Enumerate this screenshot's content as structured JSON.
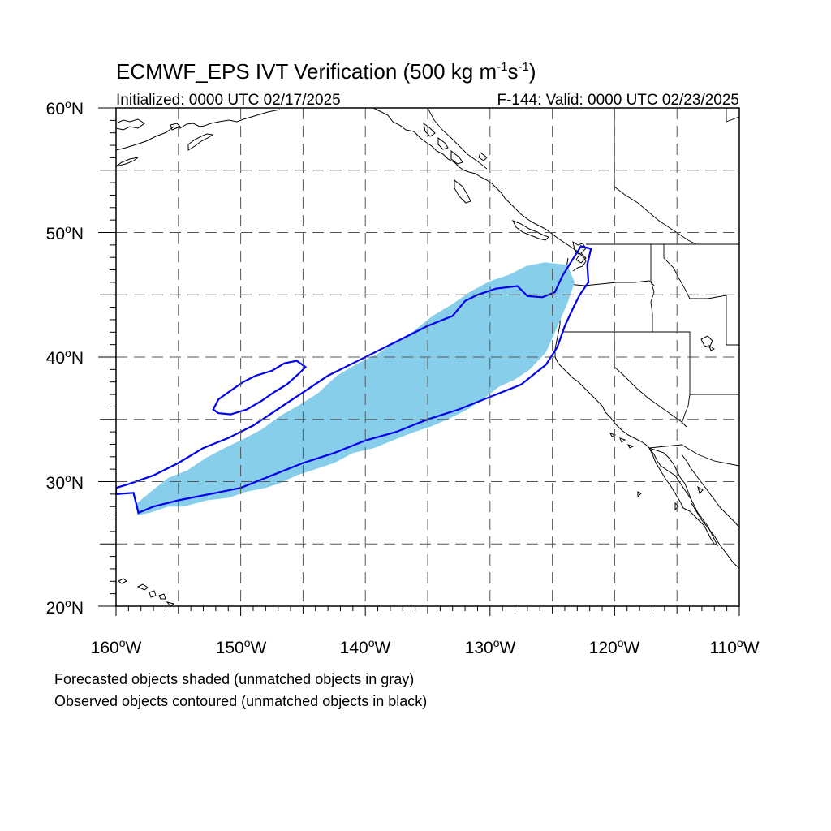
{
  "title": {
    "prefix": "ECMWF_EPS IVT Verification (500 kg m",
    "exp1": "-1",
    "middle": "s",
    "exp2": "-1",
    "suffix": ")"
  },
  "initialized": "Initialized: 0000 UTC 02/17/2025",
  "valid": "F-144: Valid: 0000 UTC 02/23/2025",
  "axes": {
    "lat_labels": [
      "20",
      "30",
      "40",
      "50",
      "60"
    ],
    "lat_suffix": "N",
    "lon_labels": [
      "160",
      "150",
      "140",
      "130",
      "120",
      "110"
    ],
    "lon_suffix": "W",
    "degree": "o"
  },
  "notes": [
    "Forecasted objects shaded (unmatched objects in gray)",
    "Observed objects contoured (unmatched objects in black)"
  ],
  "map": {
    "lon_range": [
      -160,
      -110
    ],
    "lat_range": [
      20,
      60
    ],
    "projection": "equirectangular",
    "grid_spacing_deg": 5,
    "grid": true
  },
  "colors": {
    "forecast_fill": "#87ceeb",
    "observed_contour": "#0000ee",
    "gridline": "#555555",
    "coastline": "#000000"
  },
  "chart_data": {
    "type": "map",
    "title": "ECMWF_EPS IVT Verification (500 kg m-1s-1)",
    "subtitles": [
      "Initialized: 0000 UTC 02/17/2025",
      "F-144: Valid: 0000 UTC 02/23/2025"
    ],
    "xlim": [
      -160,
      -110
    ],
    "ylim": [
      20,
      60
    ],
    "forecast_object_lonlat": [
      [
        -158.3,
        27.3
      ],
      [
        -157.3,
        27.5
      ],
      [
        -155.8,
        28.0
      ],
      [
        -154.6,
        28.0
      ],
      [
        -152.7,
        28.5
      ],
      [
        -151.0,
        28.7
      ],
      [
        -149.5,
        29.2
      ],
      [
        -148.0,
        29.5
      ],
      [
        -146.8,
        29.9
      ],
      [
        -145.5,
        30.5
      ],
      [
        -144.0,
        31.0
      ],
      [
        -142.5,
        31.5
      ],
      [
        -141.0,
        32.3
      ],
      [
        -139.3,
        32.7
      ],
      [
        -137.8,
        33.3
      ],
      [
        -136.3,
        33.9
      ],
      [
        -134.8,
        34.4
      ],
      [
        -133.4,
        35.0
      ],
      [
        -131.8,
        35.8
      ],
      [
        -130.6,
        36.6
      ],
      [
        -129.3,
        37.6
      ],
      [
        -128.0,
        38.2
      ],
      [
        -126.8,
        39.0
      ],
      [
        -125.5,
        40.4
      ],
      [
        -124.7,
        42.2
      ],
      [
        -123.8,
        44.3
      ],
      [
        -123.2,
        46.0
      ],
      [
        -123.8,
        47.4
      ],
      [
        -125.6,
        47.6
      ],
      [
        -127.1,
        47.3
      ],
      [
        -128.5,
        46.6
      ],
      [
        -130.0,
        46.1
      ],
      [
        -131.5,
        45.3
      ],
      [
        -133.1,
        44.2
      ],
      [
        -134.6,
        43.3
      ],
      [
        -136.1,
        42.1
      ],
      [
        -137.6,
        41.2
      ],
      [
        -139.1,
        40.2
      ],
      [
        -140.6,
        39.5
      ],
      [
        -142.3,
        38.5
      ],
      [
        -143.8,
        37.1
      ],
      [
        -145.2,
        36.2
      ],
      [
        -146.8,
        35.3
      ],
      [
        -148.3,
        34.2
      ],
      [
        -149.8,
        33.4
      ],
      [
        -151.3,
        32.7
      ],
      [
        -152.8,
        31.9
      ],
      [
        -154.3,
        30.9
      ],
      [
        -155.8,
        30.3
      ],
      [
        -157.2,
        29.2
      ],
      [
        -158.4,
        28.2
      ]
    ],
    "observed_objects_lonlat": [
      [
        [
          -160.0,
          29.0
        ],
        [
          -158.6,
          29.1
        ],
        [
          -158.2,
          27.5
        ],
        [
          -157.0,
          28.0
        ],
        [
          -155.0,
          28.5
        ],
        [
          -152.5,
          29.0
        ],
        [
          -150.0,
          29.5
        ],
        [
          -147.5,
          30.5
        ],
        [
          -145.0,
          31.5
        ],
        [
          -142.5,
          32.3
        ],
        [
          -140.0,
          33.3
        ],
        [
          -137.5,
          34.0
        ],
        [
          -135.0,
          35.0
        ],
        [
          -132.5,
          35.8
        ],
        [
          -130.0,
          36.8
        ],
        [
          -127.5,
          37.8
        ],
        [
          -125.5,
          39.4
        ],
        [
          -124.6,
          40.8
        ],
        [
          -124.0,
          42.5
        ],
        [
          -123.3,
          44.0
        ],
        [
          -122.8,
          45.0
        ],
        [
          -122.1,
          46.0
        ],
        [
          -122.2,
          47.4
        ],
        [
          -121.9,
          48.7
        ],
        [
          -122.7,
          48.9
        ],
        [
          -123.4,
          47.8
        ],
        [
          -124.2,
          46.5
        ],
        [
          -124.8,
          45.2
        ],
        [
          -125.8,
          44.8
        ],
        [
          -127.0,
          44.9
        ],
        [
          -127.8,
          45.7
        ],
        [
          -129.5,
          45.5
        ],
        [
          -131.0,
          45.0
        ],
        [
          -132.0,
          44.5
        ],
        [
          -133.0,
          43.3
        ],
        [
          -135.0,
          42.5
        ],
        [
          -137.0,
          41.5
        ],
        [
          -139.0,
          40.5
        ],
        [
          -141.0,
          39.5
        ],
        [
          -143.0,
          38.5
        ],
        [
          -144.5,
          37.5
        ],
        [
          -146.0,
          36.5
        ],
        [
          -147.5,
          35.5
        ],
        [
          -149.0,
          34.5
        ],
        [
          -151.0,
          33.5
        ],
        [
          -153.0,
          32.7
        ],
        [
          -155.0,
          31.5
        ],
        [
          -157.0,
          30.5
        ],
        [
          -159.0,
          29.8
        ],
        [
          -160.0,
          29.5
        ]
      ],
      [
        [
          -151.8,
          35.5
        ],
        [
          -152.2,
          35.8
        ],
        [
          -151.8,
          36.6
        ],
        [
          -150.8,
          37.3
        ],
        [
          -149.8,
          38.0
        ],
        [
          -148.8,
          38.5
        ],
        [
          -147.5,
          38.9
        ],
        [
          -146.5,
          39.5
        ],
        [
          -145.5,
          39.7
        ],
        [
          -144.8,
          39.2
        ],
        [
          -145.3,
          38.7
        ],
        [
          -146.3,
          37.8
        ],
        [
          -147.3,
          37.2
        ],
        [
          -148.3,
          36.5
        ],
        [
          -149.5,
          35.8
        ],
        [
          -150.8,
          35.4
        ]
      ]
    ]
  }
}
